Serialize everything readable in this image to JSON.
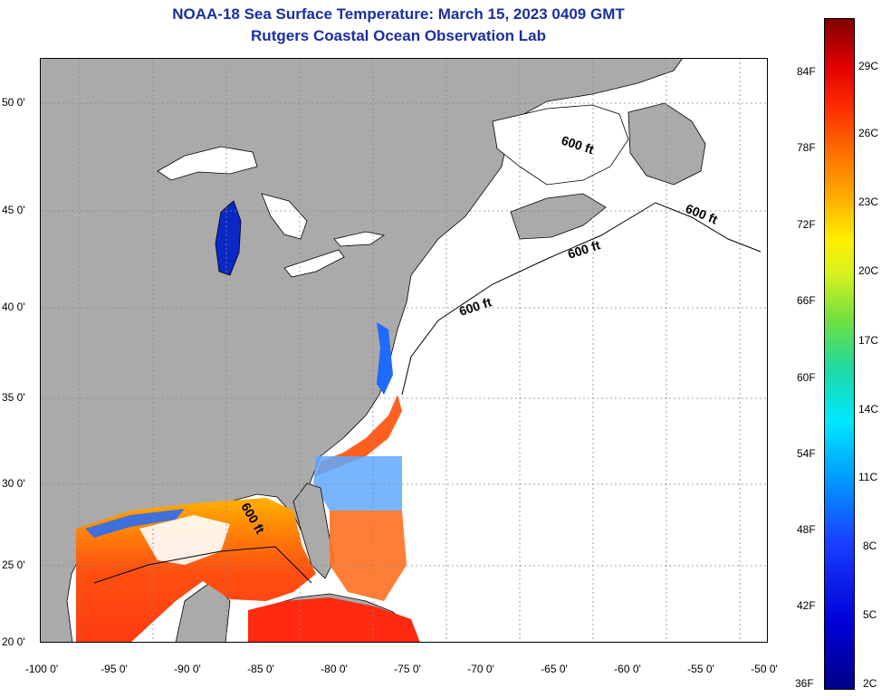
{
  "header": {
    "title": "NOAA-18 Sea Surface Temperature:  March 15, 2023 0409 GMT",
    "subtitle": "Rutgers Coastal Ocean Observation Lab"
  },
  "map": {
    "lat_ticks": [
      "50 0'",
      "45 0'",
      "40 0'",
      "35 0'",
      "30 0'",
      "25 0'",
      "20 0'"
    ],
    "lon_ticks": [
      "-100 0'",
      "-95 0'",
      "-90 0'",
      "-85 0'",
      "-80 0'",
      "-75 0'",
      "-70 0'",
      "-65 0'",
      "-60 0'",
      "-55 0'",
      "-50 0'"
    ],
    "contour_label": "600 ft",
    "colors": {
      "land": "#aaaaaa",
      "water_nodata": "#ffffff",
      "cold": "#0a28c8",
      "warm": "#ff3a10",
      "title": "#1a2fa0"
    }
  },
  "colorbar": {
    "fahrenheit": [
      "84F",
      "78F",
      "72F",
      "66F",
      "60F",
      "54F",
      "48F",
      "42F",
      "36F"
    ],
    "celsius": [
      "29C",
      "26C",
      "23C",
      "20C",
      "17C",
      "14C",
      "11C",
      "8C",
      "5C",
      "2C"
    ]
  }
}
